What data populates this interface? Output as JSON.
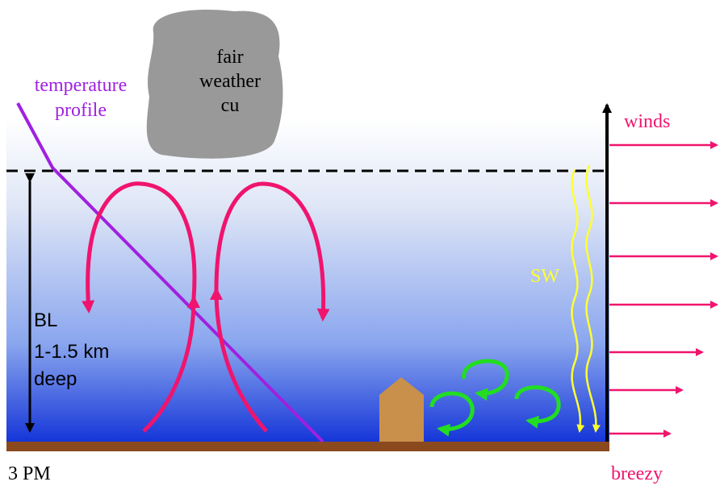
{
  "cloud": {
    "lines": [
      "fair",
      "weather",
      "cu"
    ]
  },
  "temperature_profile": {
    "lines": [
      "temperature",
      "profile"
    ]
  },
  "winds_label": "winds",
  "sw_label": "SW",
  "bl_label": {
    "lines": [
      "BL",
      "1-1.5 km",
      "deep"
    ]
  },
  "time_label": "3 PM",
  "wind_condition": "breezy"
}
